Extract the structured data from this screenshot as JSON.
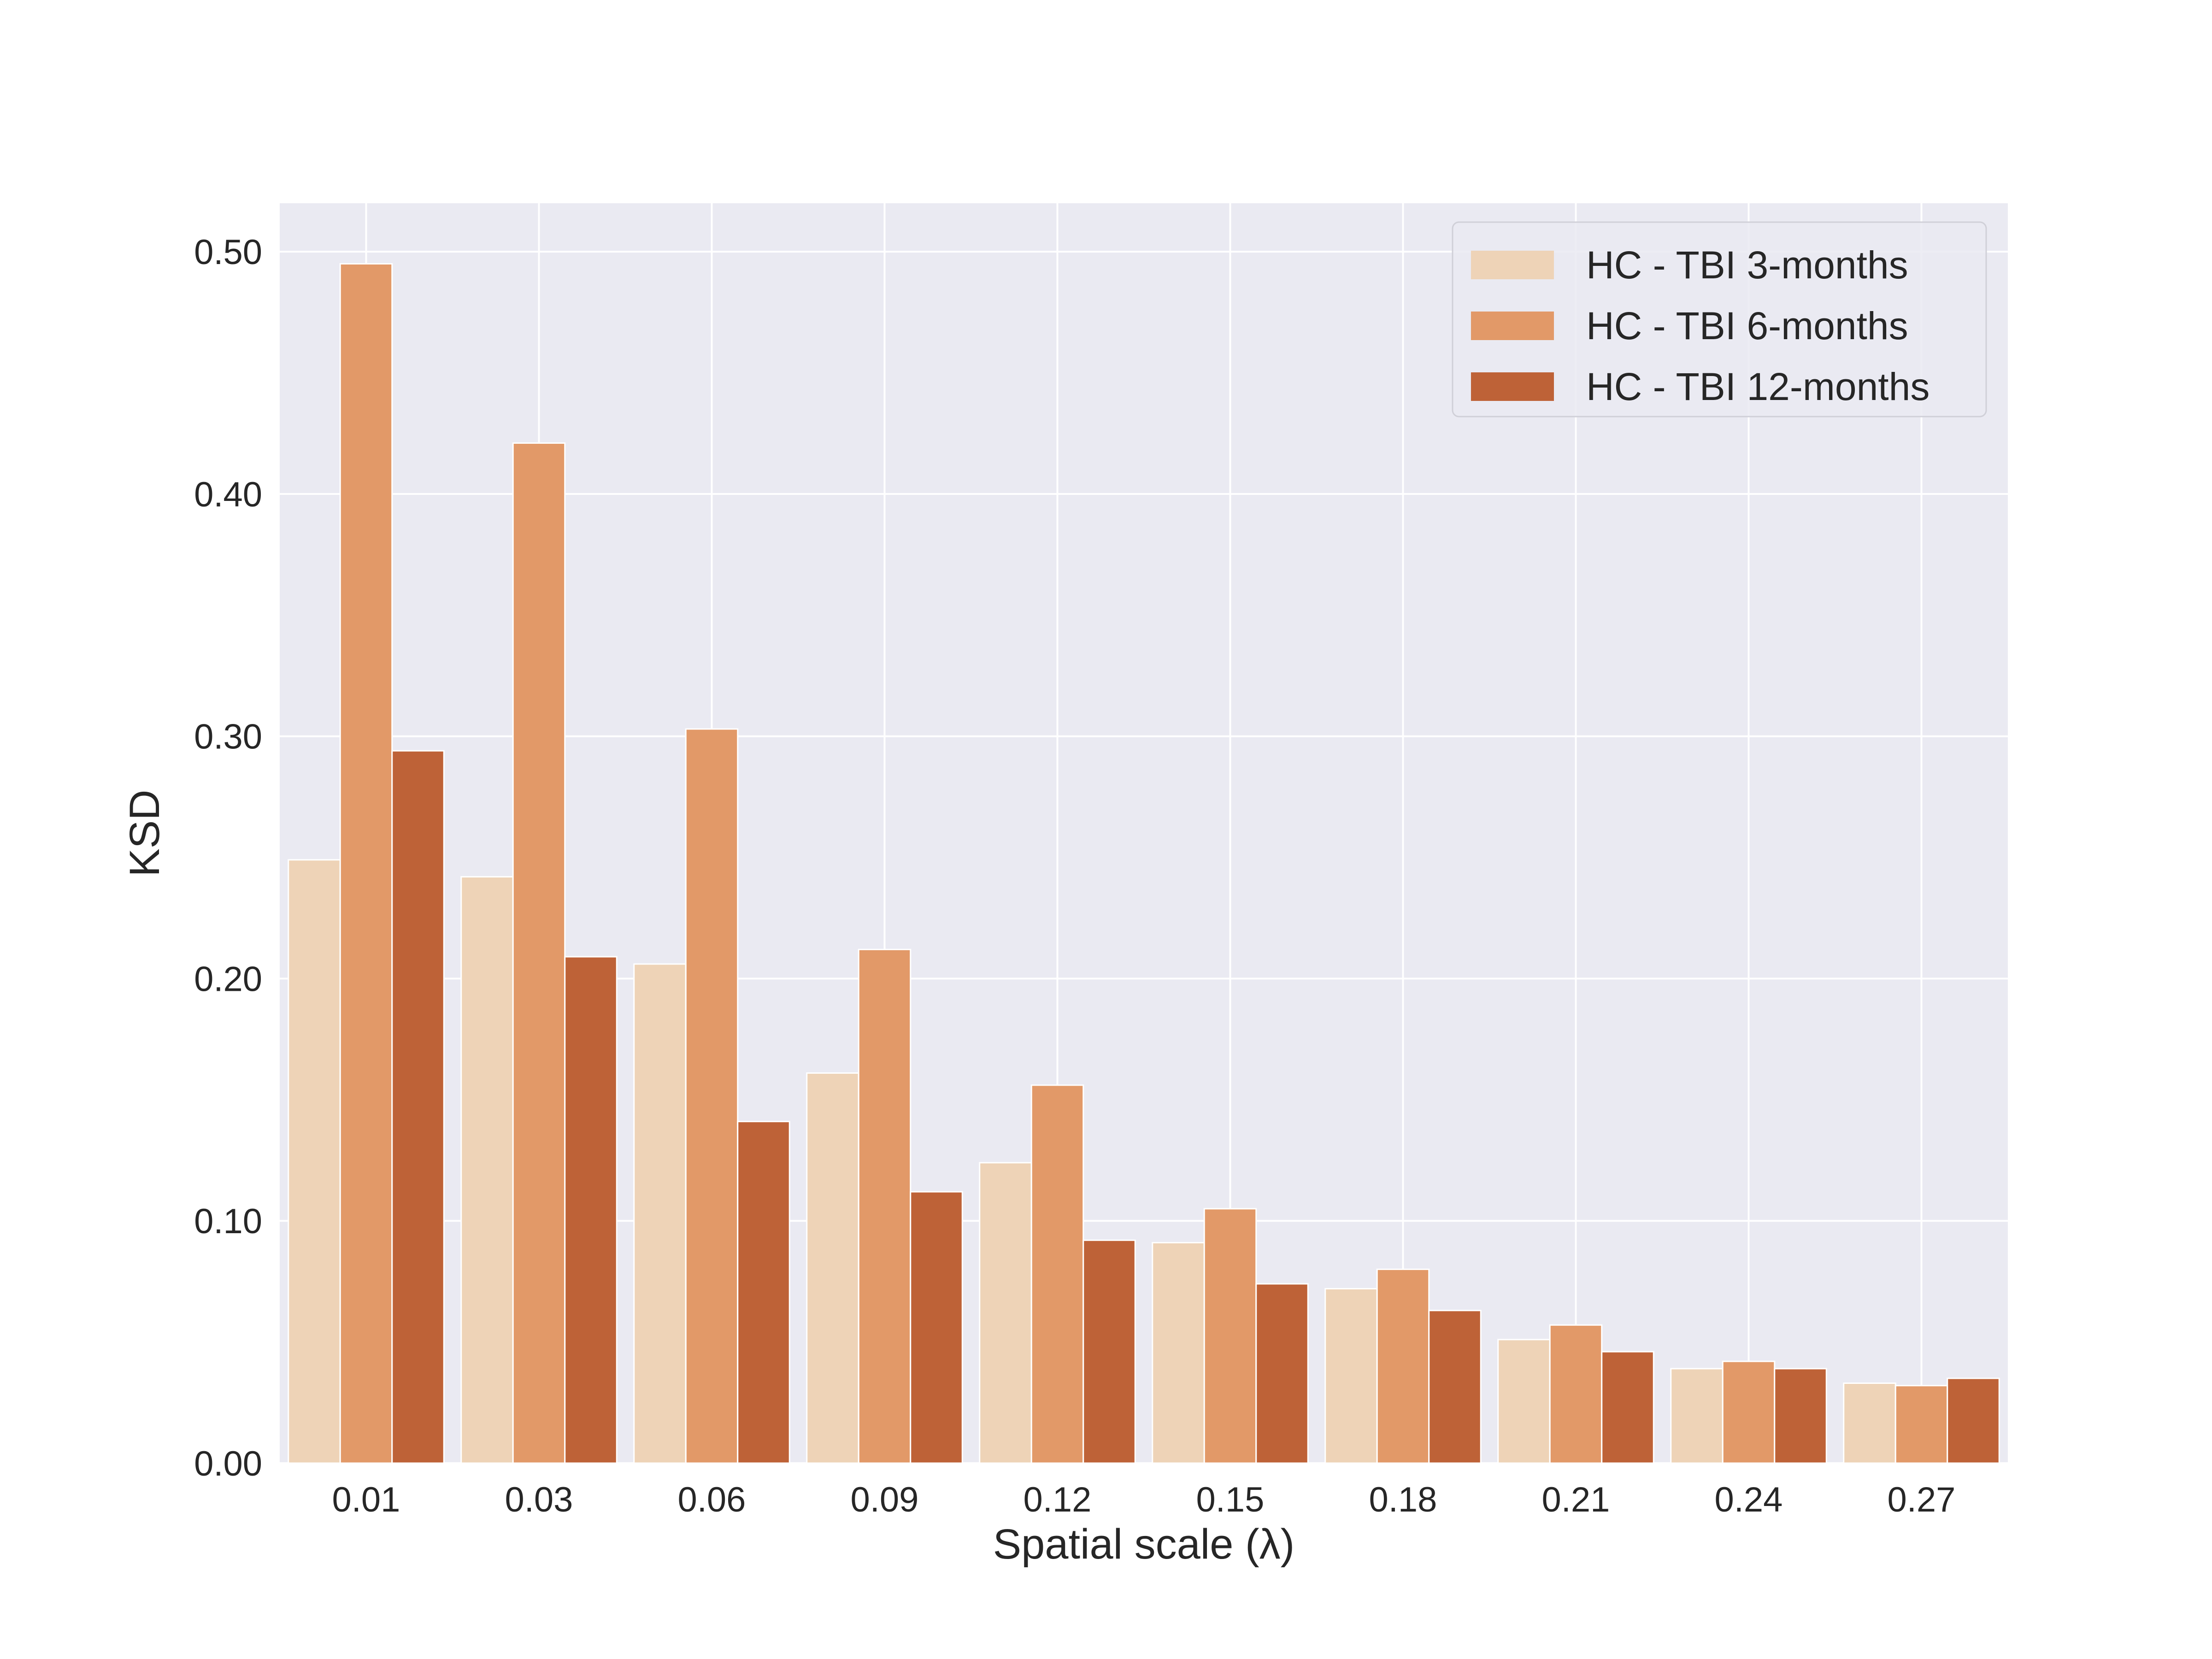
{
  "chart_data": {
    "type": "bar",
    "categories": [
      "0.01",
      "0.03",
      "0.06",
      "0.09",
      "0.12",
      "0.15",
      "0.18",
      "0.21",
      "0.24",
      "0.27"
    ],
    "series": [
      {
        "name": "HC - TBI 3-months",
        "color": "#EED3B7",
        "values": [
          0.249,
          0.242,
          0.206,
          0.161,
          0.124,
          0.091,
          0.072,
          0.051,
          0.039,
          0.033
        ]
      },
      {
        "name": "HC - TBI 6-months",
        "color": "#E29968",
        "values": [
          0.495,
          0.421,
          0.303,
          0.212,
          0.156,
          0.105,
          0.08,
          0.057,
          0.042,
          0.032
        ]
      },
      {
        "name": "HC - TBI 12-months",
        "color": "#BE6237",
        "values": [
          0.294,
          0.209,
          0.141,
          0.112,
          0.092,
          0.074,
          0.063,
          0.046,
          0.039,
          0.035
        ]
      }
    ],
    "xlabel": "Spatial scale (λ)",
    "ylabel": "KSD",
    "ylim": [
      0,
      0.52
    ],
    "yticks": [
      0.0,
      0.1,
      0.2,
      0.3,
      0.4,
      0.5
    ],
    "ytick_labels": [
      "0.00",
      "0.10",
      "0.20",
      "0.30",
      "0.40",
      "0.50"
    ],
    "grid": true,
    "legend_position": "top-right",
    "background_color": "#EAEAF2",
    "grid_color": "#FFFFFF"
  }
}
